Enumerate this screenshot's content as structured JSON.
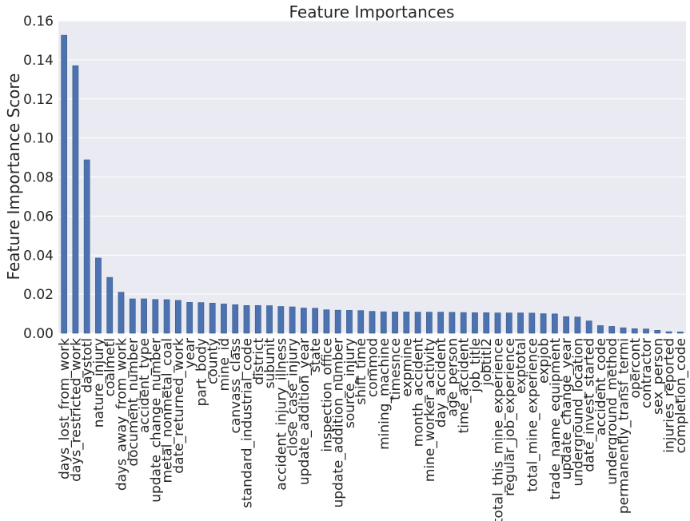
{
  "chart_data": {
    "type": "bar",
    "title": "Feature Importances",
    "y_label": "Feature Importance Score",
    "categories": [
      "days_lost_from_work",
      "days_restricted_work",
      "daystotl",
      "nature_injury",
      "coalmetl",
      "days_away_from_work",
      "document_number",
      "accident_type",
      "update_change_number",
      "metal_nonmetal_coal",
      "date_returned_work",
      "year",
      "part_body",
      "county",
      "mine_id",
      "canvass_class",
      "standard_industrial_code",
      "district",
      "subunit",
      "accident_injury_illness",
      "close_case_injury",
      "update_addition_year",
      "state",
      "inspection_office",
      "update_addition_number",
      "source_injury",
      "shift_time",
      "commod",
      "mining_machine",
      "timesnce",
      "expmine",
      "month_accident",
      "mine_worker_activity",
      "day_accident",
      "age_person",
      "time_accident",
      "job_title",
      "jobtitl2",
      "total_this_mine_experience",
      "regular_job_experience",
      "exptotal",
      "total_mine_experience",
      "expjob",
      "trade_name_equipment",
      "update_change_year",
      "underground_location",
      "date_invest_started",
      "accident_code",
      "underground_method",
      "permanently_transf_termi",
      "opercont",
      "contractor",
      "sex_person",
      "injuries_reported",
      "completion_code"
    ],
    "values": [
      0.1526,
      0.137,
      0.0888,
      0.0385,
      0.0286,
      0.021,
      0.0176,
      0.0176,
      0.0173,
      0.0172,
      0.0168,
      0.0158,
      0.0157,
      0.0154,
      0.015,
      0.0146,
      0.0142,
      0.0142,
      0.0141,
      0.0137,
      0.0135,
      0.0129,
      0.0128,
      0.012,
      0.0118,
      0.0117,
      0.0116,
      0.0112,
      0.011,
      0.0109,
      0.0109,
      0.0108,
      0.0108,
      0.0108,
      0.0107,
      0.0106,
      0.0105,
      0.0105,
      0.0104,
      0.0104,
      0.0104,
      0.0103,
      0.01,
      0.0099,
      0.0085,
      0.0083,
      0.0063,
      0.0039,
      0.0035,
      0.0028,
      0.0023,
      0.0022,
      0.0015,
      0.0008,
      0.0007
    ],
    "color": "#4c72b0",
    "ylim": [
      0,
      0.16
    ],
    "yticks": [
      {
        "value": 0,
        "label": "0.00"
      },
      {
        "value": 0.02,
        "label": "0.02"
      },
      {
        "value": 0.04,
        "label": "0.04"
      },
      {
        "value": 0.06,
        "label": "0.06"
      },
      {
        "value": 0.08,
        "label": "0.08"
      },
      {
        "value": 0.1,
        "label": "0.10"
      },
      {
        "value": 0.12,
        "label": "0.12"
      },
      {
        "value": 0.14,
        "label": "0.14"
      },
      {
        "value": 0.16,
        "label": "0.16"
      }
    ],
    "grid": true
  }
}
